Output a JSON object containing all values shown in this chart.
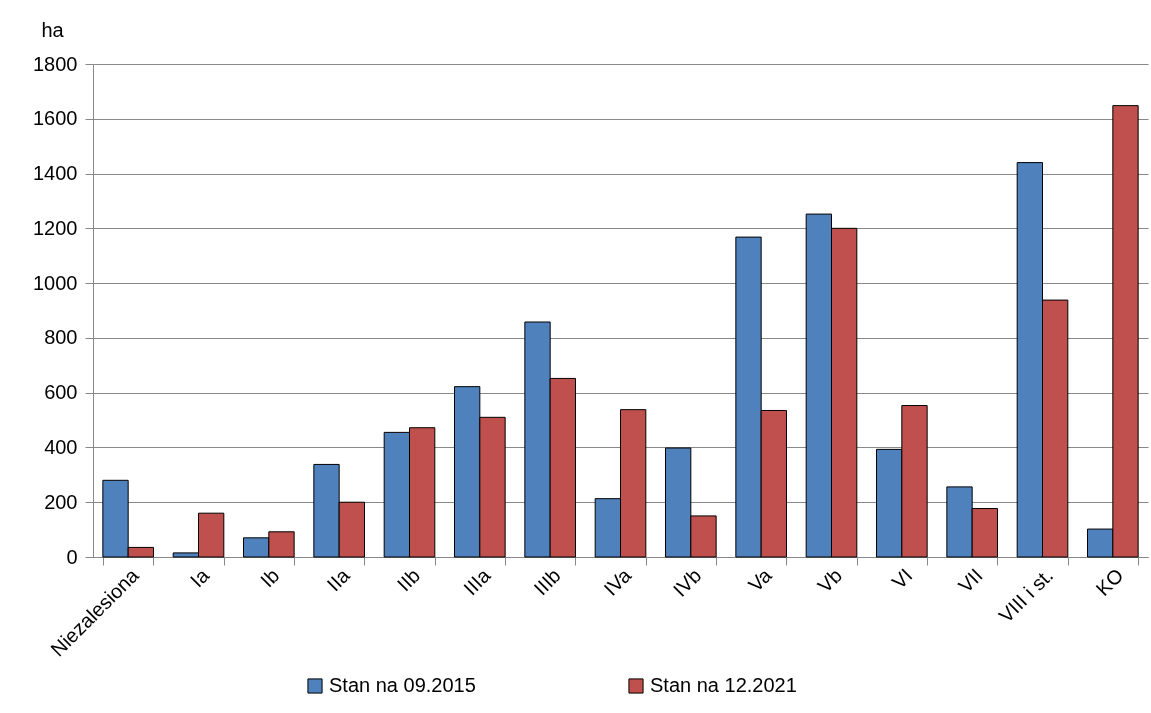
{
  "chart_data": {
    "type": "bar",
    "ylabel": "ha",
    "categories": [
      "Niezalesiona",
      "Ia",
      "Ib",
      "IIa",
      "IIb",
      "IIIa",
      "IIIb",
      "IVa",
      "IVb",
      "Va",
      "Vb",
      "VI",
      "VII",
      "VIII i st.",
      "KO"
    ],
    "series": [
      {
        "name": "Stan na 09.2015",
        "color": "#4f81bd",
        "values": [
          280,
          15,
          70,
          338,
          455,
          622,
          858,
          213,
          398,
          1168,
          1252,
          393,
          256,
          1440,
          102
        ]
      },
      {
        "name": "Stan na 12.2021",
        "color": "#c0504d",
        "values": [
          35,
          160,
          92,
          200,
          472,
          510,
          652,
          538,
          150,
          535,
          1200,
          553,
          177,
          938,
          1648
        ]
      }
    ],
    "ylim": [
      0,
      1800
    ],
    "yticks": [
      0,
      200,
      400,
      600,
      800,
      1000,
      1200,
      1400,
      1600,
      1800
    ],
    "grid": "y",
    "legend": "bottom"
  }
}
